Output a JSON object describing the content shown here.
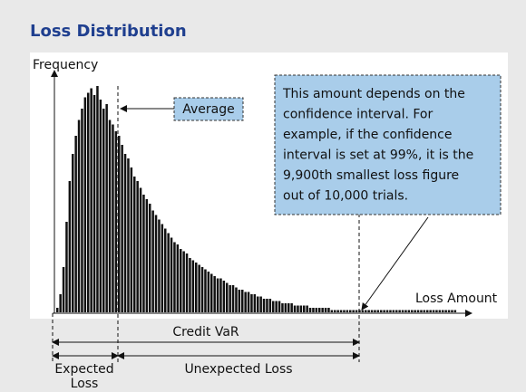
{
  "chart_data": {
    "type": "bar",
    "title": "Loss Distribution",
    "y_label": "Frequency",
    "x_label": "Loss Amount",
    "values": [
      2,
      8,
      20,
      40,
      58,
      70,
      78,
      85,
      90,
      95,
      97,
      99,
      96,
      100,
      94,
      90,
      92,
      85,
      83,
      80,
      78,
      74,
      70,
      68,
      64,
      60,
      58,
      55,
      52,
      50,
      48,
      45,
      43,
      41,
      39,
      37,
      35,
      33,
      31,
      30,
      28,
      27,
      26,
      24,
      23,
      22,
      21,
      20,
      19,
      18,
      17,
      16,
      15,
      15,
      14,
      13,
      12,
      12,
      11,
      10,
      10,
      9,
      9,
      8,
      8,
      7,
      7,
      6,
      6,
      6,
      5,
      5,
      5,
      4,
      4,
      4,
      4,
      3,
      3,
      3,
      3,
      3,
      2,
      2,
      2,
      2,
      2,
      2,
      2,
      1,
      1,
      1,
      1,
      1,
      1,
      1,
      1,
      1,
      1,
      1,
      1,
      1,
      1,
      1,
      1,
      1,
      1,
      1,
      1,
      1,
      1,
      1,
      1,
      1,
      1,
      1,
      1,
      1,
      1,
      1,
      1,
      1,
      1,
      1,
      1,
      1,
      1,
      1,
      1,
      1
    ],
    "color": "#111111",
    "ylim": [
      0,
      100
    ],
    "annotations": {
      "average": "Average",
      "var_note": [
        "This amount depends on the",
        "confidence interval. For",
        "example, if the confidence",
        "interval is set at 99%, it is the",
        "9,900th smallest loss figure",
        "out of 10,000 trials."
      ],
      "credit_var": "Credit VaR",
      "expected_loss": [
        "Expected",
        "Loss"
      ],
      "unexpected_loss": "Unexpected Loss"
    }
  }
}
